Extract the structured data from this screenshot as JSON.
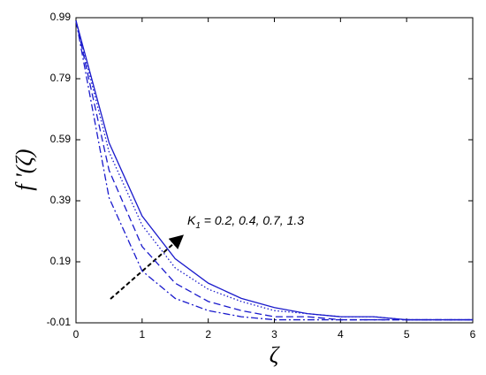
{
  "chart_data": {
    "type": "line",
    "x_label": "ζ",
    "y_label": "f '(ζ)",
    "annotation": {
      "symbol": "K",
      "subscript": "1",
      "text": " = 0.2, 0.4, 0.7, 1.3"
    },
    "x": [
      0,
      0.5,
      1,
      1.5,
      2,
      2.5,
      3,
      3.5,
      4,
      4.5,
      5,
      5.5,
      6
    ],
    "series": [
      {
        "color": "#1a1acc",
        "dash": "solid",
        "values": [
          0.98,
          0.58,
          0.34,
          0.2,
          0.12,
          0.07,
          0.04,
          0.02,
          0.01,
          0.01,
          0,
          0,
          0
        ]
      },
      {
        "color": "#1a1acc",
        "dash": "dotted",
        "values": [
          0.98,
          0.55,
          0.31,
          0.17,
          0.1,
          0.06,
          0.03,
          0.02,
          0.01,
          0.01,
          0,
          0,
          0
        ]
      },
      {
        "color": "#1a1acc",
        "dash": "dashed",
        "values": [
          0.98,
          0.49,
          0.24,
          0.12,
          0.06,
          0.03,
          0.01,
          0.01,
          0,
          0,
          0,
          0,
          0
        ]
      },
      {
        "color": "#1a1acc",
        "dash": "dashdot",
        "values": [
          0.98,
          0.4,
          0.16,
          0.07,
          0.03,
          0.01,
          0,
          0,
          0,
          0,
          0,
          0,
          0
        ]
      }
    ],
    "xlim": [
      0,
      6
    ],
    "xticks": [
      0,
      1,
      2,
      3,
      4,
      5,
      6
    ],
    "ylim": [
      -0.01,
      0.99
    ],
    "yticks": [
      -0.01,
      0.19,
      0.39,
      0.59,
      0.79,
      0.99
    ],
    "grid": false
  }
}
